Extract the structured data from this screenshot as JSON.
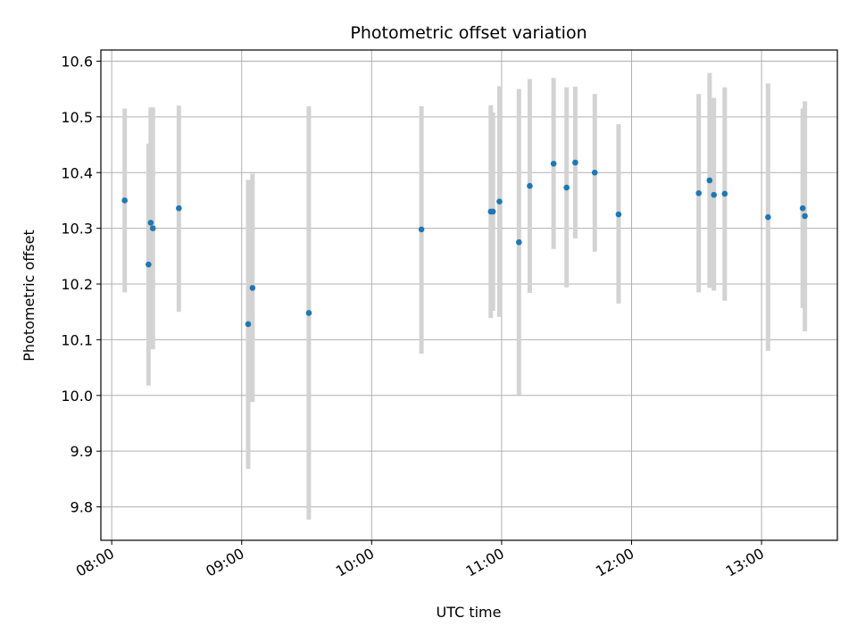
{
  "chart_data": {
    "type": "scatter",
    "title": "Photometric offset variation",
    "xlabel": "UTC time",
    "ylabel": "Photometric offset",
    "xlim": [
      "07:55",
      "13:35"
    ],
    "ylim": [
      9.74,
      10.62
    ],
    "x_ticks": [
      "08:00",
      "09:00",
      "10:00",
      "11:00",
      "12:00",
      "13:00"
    ],
    "y_ticks": [
      9.8,
      9.9,
      10.0,
      10.1,
      10.2,
      10.3,
      10.4,
      10.5,
      10.6
    ],
    "grid": true,
    "colors": {
      "point": "#1f77b4",
      "errorbar": "#d3d3d3",
      "grid": "#b0b0b0",
      "axes": "#000000"
    },
    "points": [
      {
        "t": "08:06",
        "y": 10.35,
        "lo": 10.185,
        "hi": 10.515
      },
      {
        "t": "08:17",
        "y": 10.235,
        "lo": 10.018,
        "hi": 10.452
      },
      {
        "t": "08:18",
        "y": 10.31,
        "lo": 10.102,
        "hi": 10.517
      },
      {
        "t": "08:19",
        "y": 10.3,
        "lo": 10.083,
        "hi": 10.517
      },
      {
        "t": "08:31",
        "y": 10.336,
        "lo": 10.15,
        "hi": 10.52
      },
      {
        "t": "09:03",
        "y": 10.128,
        "lo": 9.868,
        "hi": 10.387
      },
      {
        "t": "09:05",
        "y": 10.193,
        "lo": 9.988,
        "hi": 10.398
      },
      {
        "t": "09:31",
        "y": 10.148,
        "lo": 9.777,
        "hi": 10.519
      },
      {
        "t": "10:23",
        "y": 10.298,
        "lo": 10.075,
        "hi": 10.519
      },
      {
        "t": "10:55",
        "y": 10.33,
        "lo": 10.139,
        "hi": 10.521
      },
      {
        "t": "10:56",
        "y": 10.33,
        "lo": 10.152,
        "hi": 10.508
      },
      {
        "t": "10:59",
        "y": 10.348,
        "lo": 10.141,
        "hi": 10.555
      },
      {
        "t": "11:08",
        "y": 10.275,
        "lo": 10.001,
        "hi": 10.55
      },
      {
        "t": "11:13",
        "y": 10.376,
        "lo": 10.184,
        "hi": 10.568
      },
      {
        "t": "11:24",
        "y": 10.416,
        "lo": 10.263,
        "hi": 10.57
      },
      {
        "t": "11:30",
        "y": 10.373,
        "lo": 10.194,
        "hi": 10.553
      },
      {
        "t": "11:34",
        "y": 10.418,
        "lo": 10.282,
        "hi": 10.554
      },
      {
        "t": "11:43",
        "y": 10.4,
        "lo": 10.258,
        "hi": 10.541
      },
      {
        "t": "11:54",
        "y": 10.325,
        "lo": 10.165,
        "hi": 10.487
      },
      {
        "t": "12:31",
        "y": 10.363,
        "lo": 10.185,
        "hi": 10.541
      },
      {
        "t": "12:36",
        "y": 10.386,
        "lo": 10.193,
        "hi": 10.579
      },
      {
        "t": "12:38",
        "y": 10.36,
        "lo": 10.188,
        "hi": 10.534
      },
      {
        "t": "12:43",
        "y": 10.362,
        "lo": 10.17,
        "hi": 10.553
      },
      {
        "t": "13:03",
        "y": 10.32,
        "lo": 10.08,
        "hi": 10.56
      },
      {
        "t": "13:19",
        "y": 10.336,
        "lo": 10.157,
        "hi": 10.515
      },
      {
        "t": "13:20",
        "y": 10.322,
        "lo": 10.115,
        "hi": 10.528
      }
    ]
  }
}
